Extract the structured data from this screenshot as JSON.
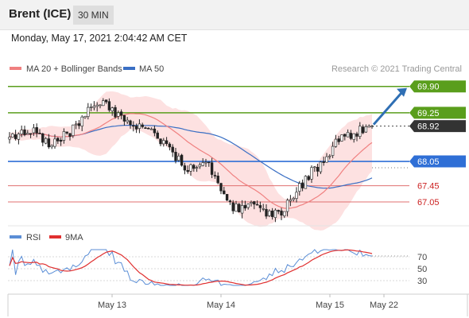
{
  "header": {
    "title": "Brent (ICE)",
    "interval": "30 MIN"
  },
  "timestamp": "Monday, May 17, 2021 2:04:42 AM CET",
  "legend": {
    "ma20_label": "MA 20 + Bollinger Bands",
    "ma50_label": "MA 50",
    "credit": "Research © 2021 Trading Central",
    "rsi_label": "RSI",
    "ma9_label": "9MA"
  },
  "colors": {
    "ma20": "#f08080",
    "band_fill": "#fddede",
    "ma50": "#3a6fc4",
    "resistance": "#5a9e1c",
    "pivot": "#2f6fd6",
    "support": "#e07070",
    "support_text": "#cc2222",
    "candle_up": "#ffffff",
    "candle_down": "#222222",
    "rsi": "#5b8ed6",
    "rsi_ma": "#e03030",
    "target_arrow": "#2f6fb4"
  },
  "chart_data": [
    {
      "type": "candlestick",
      "title": "",
      "ylim": [
        66.5,
        70.15
      ],
      "x_ticks": [
        "May 13",
        "May 14",
        "May 15",
        "May 22"
      ],
      "levels": [
        {
          "value": 69.9,
          "label": "69.90",
          "kind": "resistance"
        },
        {
          "value": 69.25,
          "label": "69.25",
          "kind": "resistance"
        },
        {
          "value": 68.92,
          "label": "68.92",
          "kind": "last"
        },
        {
          "value": 68.05,
          "label": "68.05",
          "kind": "pivot"
        },
        {
          "value": 67.45,
          "label": "67.45",
          "kind": "support"
        },
        {
          "value": 67.05,
          "label": "67.05",
          "kind": "support"
        }
      ],
      "target": {
        "from": 68.92,
        "to": 69.9
      },
      "close_anchors": [
        [
          0,
          68.65
        ],
        [
          8,
          68.78
        ],
        [
          14,
          68.45
        ],
        [
          20,
          68.78
        ],
        [
          24,
          69.1
        ],
        [
          28,
          69.45
        ],
        [
          32,
          69.5
        ],
        [
          36,
          69.15
        ],
        [
          42,
          68.95
        ],
        [
          48,
          68.7
        ],
        [
          54,
          68.25
        ],
        [
          58,
          67.9
        ],
        [
          62,
          67.85
        ],
        [
          66,
          67.95
        ],
        [
          70,
          67.4
        ],
        [
          74,
          66.9
        ],
        [
          80,
          66.95
        ],
        [
          86,
          66.75
        ],
        [
          90,
          66.8
        ],
        [
          96,
          67.4
        ],
        [
          100,
          67.8
        ],
        [
          104,
          68.05
        ],
        [
          108,
          68.55
        ],
        [
          114,
          68.75
        ],
        [
          120,
          68.92
        ]
      ]
    },
    {
      "type": "line",
      "title": "",
      "series": [
        {
          "name": "RSI"
        },
        {
          "name": "9MA"
        }
      ],
      "ylim": [
        10,
        90
      ],
      "y_ticks": [
        70,
        50,
        30
      ]
    }
  ]
}
